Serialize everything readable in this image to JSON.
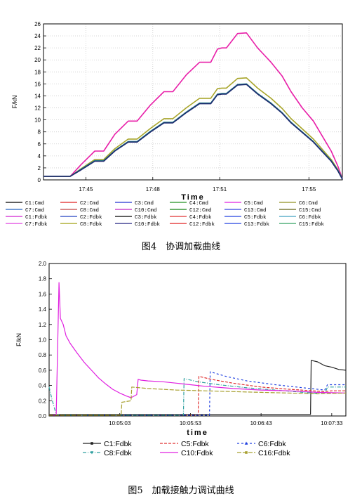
{
  "chart_data": [
    {
      "type": "line",
      "title": "",
      "caption": "图4　协调加载曲线",
      "xlabel": "Time",
      "ylabel": "F/kN",
      "ylim": [
        0,
        26
      ],
      "yticks": [
        0,
        2,
        4,
        6,
        8,
        10,
        12,
        14,
        16,
        18,
        20,
        22,
        24,
        26
      ],
      "x_tick_labels": [
        "17:45",
        "17:48",
        "17:51",
        "17:55"
      ],
      "x_tick_minutes": [
        0,
        3,
        6,
        10
      ],
      "xlim_minutes": [
        -1.9,
        11.5
      ],
      "grid": true,
      "legend_position": "bottom",
      "legend_labels": [
        "C1:Cmd",
        "C2:Cmd",
        "C3:Cmd",
        "C4:Cmd",
        "C5:Cmd",
        "C6:Cmd",
        "C7:Cmd",
        "C8:Cmd",
        "C10:Cmd",
        "C12:Cmd",
        "C13:Cmd",
        "C15:Cmd",
        "C1:Fdbk",
        "C2:Fdbk",
        "C3:Fdbk",
        "C4:Fdbk",
        "C5:Fdbk",
        "C6:Fdbk",
        "C7:Fdbk",
        "C8:Fdbk",
        "C10:Fdbk",
        "C12:Fdbk",
        "C13:Fdbk",
        "C15:Fdbk"
      ],
      "legend_colors": [
        "#000000",
        "#e02020",
        "#2030d0",
        "#209020",
        "#e020e0",
        "#909020",
        "#2060c0",
        "#c04040",
        "#c020c0",
        "#108010",
        "#3040e0",
        "#606010",
        "#d020d0",
        "#2040c0",
        "#000000",
        "#e03030",
        "#2040e0",
        "#40a0c0",
        "#e040e0",
        "#a0a010",
        "#202080",
        "#e02020",
        "#2040e0",
        "#30a060"
      ],
      "series": [
        {
          "group": "pink",
          "color": "#e81ea8",
          "x": [
            -1.9,
            -0.7,
            -0.2,
            0.4,
            0.8,
            1.3,
            1.9,
            2.3,
            2.9,
            3.5,
            3.9,
            4.5,
            5.1,
            5.4,
            5.6,
            5.9,
            6.1,
            6.3,
            6.8,
            7.2,
            7.7,
            8.3,
            8.8,
            9.2,
            9.7,
            10.2,
            10.6,
            11.0,
            11.3,
            11.5
          ],
          "y": [
            0.6,
            0.6,
            2.6,
            4.8,
            4.8,
            7.6,
            9.8,
            9.8,
            12.5,
            14.7,
            14.7,
            17.5,
            19.6,
            19.6,
            19.6,
            21.8,
            22.0,
            22.0,
            24.4,
            24.5,
            22.0,
            19.6,
            17.3,
            14.7,
            12.0,
            9.8,
            7.3,
            4.8,
            2.3,
            0.2
          ]
        },
        {
          "group": "olive",
          "color": "#a8a52a",
          "x": [
            -1.9,
            -0.7,
            -0.2,
            0.4,
            0.8,
            1.3,
            1.9,
            2.3,
            2.9,
            3.5,
            3.9,
            4.5,
            5.1,
            5.4,
            5.6,
            5.9,
            6.1,
            6.3,
            6.8,
            7.2,
            7.7,
            8.3,
            8.8,
            9.2,
            9.7,
            10.2,
            10.6,
            11.0,
            11.3,
            11.5
          ],
          "y": [
            0.6,
            0.6,
            1.9,
            3.4,
            3.4,
            5.2,
            6.8,
            6.8,
            8.6,
            10.2,
            10.2,
            12.0,
            13.6,
            13.6,
            13.6,
            15.2,
            15.3,
            15.3,
            16.9,
            17.0,
            15.3,
            13.6,
            11.9,
            10.2,
            8.5,
            6.8,
            5.1,
            3.4,
            1.7,
            0.2
          ]
        },
        {
          "group": "teal",
          "color": "#1e7e86",
          "x": [
            -1.9,
            -0.7,
            -0.2,
            0.4,
            0.8,
            1.3,
            1.9,
            2.3,
            2.9,
            3.5,
            3.9,
            4.5,
            5.1,
            5.4,
            5.6,
            5.9,
            6.1,
            6.3,
            6.8,
            7.2,
            7.7,
            8.3,
            8.8,
            9.2,
            9.7,
            10.2,
            10.6,
            11.0,
            11.3,
            11.5
          ],
          "y": [
            0.6,
            0.6,
            1.8,
            3.2,
            3.2,
            4.9,
            6.4,
            6.4,
            8.1,
            9.6,
            9.6,
            11.3,
            12.8,
            12.8,
            12.8,
            14.3,
            14.4,
            14.4,
            15.9,
            16.0,
            14.4,
            12.8,
            11.2,
            9.6,
            8.0,
            6.4,
            4.8,
            3.2,
            1.6,
            0.2
          ]
        },
        {
          "group": "navy",
          "color": "#1f2a70",
          "x": [
            -1.9,
            -0.7,
            -0.2,
            0.4,
            0.8,
            1.3,
            1.9,
            2.3,
            2.9,
            3.5,
            3.9,
            4.5,
            5.1,
            5.4,
            5.6,
            5.9,
            6.1,
            6.3,
            6.8,
            7.2,
            7.7,
            8.3,
            8.8,
            9.2,
            9.7,
            10.2,
            10.6,
            11.0,
            11.3,
            11.5
          ],
          "y": [
            0.6,
            0.6,
            1.7,
            3.1,
            3.1,
            4.8,
            6.3,
            6.3,
            8.0,
            9.5,
            9.5,
            11.2,
            12.7,
            12.7,
            12.7,
            14.2,
            14.3,
            14.3,
            15.8,
            15.9,
            14.3,
            12.7,
            11.1,
            9.5,
            7.9,
            6.3,
            4.7,
            3.1,
            1.5,
            0.1
          ]
        }
      ]
    },
    {
      "type": "line",
      "title": "",
      "caption": "图5　加载接触力调试曲线",
      "xlabel": "time",
      "ylabel": "F/kN",
      "ylim": [
        0,
        2.0
      ],
      "yticks": [
        0.0,
        0.2,
        0.4,
        0.6,
        0.8,
        1.0,
        1.2,
        1.4,
        1.6,
        1.8,
        2.0
      ],
      "ytick_labels": [
        "0.0",
        "0.2",
        "0.4",
        "0.6",
        "0.8",
        "1.0",
        "1.2",
        "1.4",
        "1.6",
        "1.8",
        "2.0"
      ],
      "x_tick_labels": [
        "10:05:03",
        "10:05:53",
        "10:06:43",
        "10:07:33"
      ],
      "x_tick_seconds": [
        0,
        50,
        100,
        150
      ],
      "xlim_seconds": [
        -50,
        160
      ],
      "grid": false,
      "legend_position": "bottom",
      "series": [
        {
          "name": "C1:Fdbk",
          "color": "#222222",
          "dash": "",
          "marker": "square",
          "x": [
            -50,
            135,
            135.5,
            140,
            145,
            150,
            155,
            160
          ],
          "y": [
            0.02,
            0.02,
            0.73,
            0.71,
            0.66,
            0.64,
            0.61,
            0.6
          ]
        },
        {
          "name": "C5:Fdbk",
          "color": "#e03030",
          "dash": "4,2",
          "marker": "",
          "x": [
            -50,
            55.5,
            56,
            65,
            80,
            100,
            120,
            145,
            150,
            160
          ],
          "y": [
            0.01,
            0.01,
            0.52,
            0.48,
            0.43,
            0.38,
            0.35,
            0.32,
            0.33,
            0.33
          ]
        },
        {
          "name": "C6:Fdbk",
          "color": "#2040e0",
          "dash": "3,3",
          "marker": "triangle",
          "x": [
            -50,
            63.5,
            64,
            75,
            90,
            110,
            130,
            145,
            147,
            160
          ],
          "y": [
            0.01,
            0.01,
            0.58,
            0.52,
            0.46,
            0.41,
            0.37,
            0.34,
            0.41,
            0.41
          ]
        },
        {
          "name": "C8:Fdbk",
          "color": "#30a0a0",
          "dash": "5,2,1,2",
          "marker": "triangle-down",
          "x": [
            -50,
            -48,
            -45,
            -40,
            45,
            45.5,
            55,
            70,
            90,
            110,
            130,
            145,
            147,
            160
          ],
          "y": [
            0.38,
            0.22,
            0.02,
            0.01,
            0.01,
            0.49,
            0.45,
            0.41,
            0.37,
            0.34,
            0.31,
            0.29,
            0.38,
            0.38
          ]
        },
        {
          "name": "C10:Fdbk",
          "color": "#e020e0",
          "dash": "",
          "marker": "",
          "x": [
            -50,
            -45,
            -43,
            -42,
            -40,
            -38,
            -35,
            -30,
            -25,
            -20,
            -15,
            -10,
            -5,
            0,
            5,
            8,
            12,
            13,
            15,
            20,
            30,
            40,
            50,
            60,
            80,
            100,
            120,
            140,
            160
          ],
          "y": [
            0.01,
            0.01,
            1.75,
            1.28,
            1.2,
            1.05,
            0.95,
            0.82,
            0.7,
            0.6,
            0.5,
            0.42,
            0.35,
            0.3,
            0.26,
            0.24,
            0.28,
            0.48,
            0.47,
            0.46,
            0.45,
            0.43,
            0.41,
            0.39,
            0.36,
            0.34,
            0.33,
            0.31,
            0.3
          ]
        },
        {
          "name": "C16:Fdbk",
          "color": "#a8a030",
          "dash": "6,2",
          "marker": "square",
          "x": [
            -50,
            1,
            1.5,
            8,
            8.5,
            20,
            40,
            60,
            80,
            100,
            120,
            140,
            160
          ],
          "y": [
            0.01,
            0.01,
            0.18,
            0.2,
            0.38,
            0.36,
            0.34,
            0.33,
            0.32,
            0.31,
            0.3,
            0.29,
            0.3
          ]
        }
      ]
    }
  ]
}
